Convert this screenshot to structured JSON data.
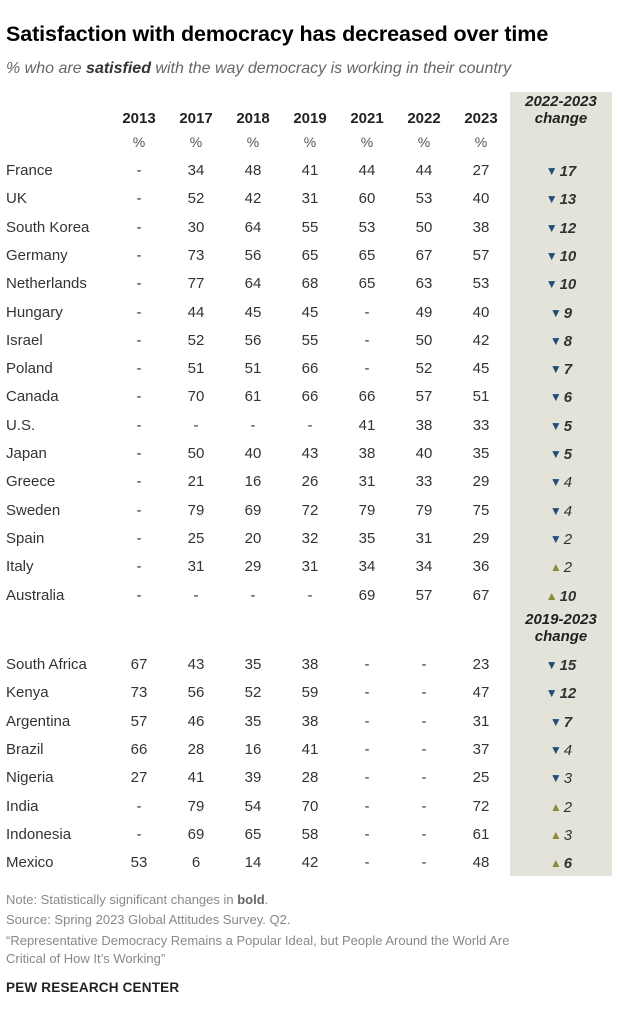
{
  "title": "Satisfaction with democracy has decreased over time",
  "subtitle": {
    "pre": "% who are ",
    "em": "satisfied",
    "post": " with the way democracy is working in their country"
  },
  "colors": {
    "down": "#1f4e79",
    "up": "#8d8b3a",
    "change_bg": "#e4e3d9"
  },
  "chart_data": {
    "type": "table",
    "columns": [
      "2013",
      "2017",
      "2018",
      "2019",
      "2021",
      "2022",
      "2023"
    ],
    "unit": "%",
    "sections": [
      {
        "change_label": "2022-2023 change",
        "rows": [
          {
            "country": "France",
            "values": [
              "-",
              "34",
              "48",
              "41",
              "44",
              "44",
              "27"
            ],
            "change": 17,
            "direction": "down",
            "significant": true
          },
          {
            "country": "UK",
            "values": [
              "-",
              "52",
              "42",
              "31",
              "60",
              "53",
              "40"
            ],
            "change": 13,
            "direction": "down",
            "significant": true
          },
          {
            "country": "South Korea",
            "values": [
              "-",
              "30",
              "64",
              "55",
              "53",
              "50",
              "38"
            ],
            "change": 12,
            "direction": "down",
            "significant": true
          },
          {
            "country": "Germany",
            "values": [
              "-",
              "73",
              "56",
              "65",
              "65",
              "67",
              "57"
            ],
            "change": 10,
            "direction": "down",
            "significant": true
          },
          {
            "country": "Netherlands",
            "values": [
              "-",
              "77",
              "64",
              "68",
              "65",
              "63",
              "53"
            ],
            "change": 10,
            "direction": "down",
            "significant": true
          },
          {
            "country": "Hungary",
            "values": [
              "-",
              "44",
              "45",
              "45",
              "-",
              "49",
              "40"
            ],
            "change": 9,
            "direction": "down",
            "significant": true
          },
          {
            "country": "Israel",
            "values": [
              "-",
              "52",
              "56",
              "55",
              "-",
              "50",
              "42"
            ],
            "change": 8,
            "direction": "down",
            "significant": true
          },
          {
            "country": "Poland",
            "values": [
              "-",
              "51",
              "51",
              "66",
              "-",
              "52",
              "45"
            ],
            "change": 7,
            "direction": "down",
            "significant": true
          },
          {
            "country": "Canada",
            "values": [
              "-",
              "70",
              "61",
              "66",
              "66",
              "57",
              "51"
            ],
            "change": 6,
            "direction": "down",
            "significant": true
          },
          {
            "country": "U.S.",
            "values": [
              "-",
              "-",
              "-",
              "-",
              "41",
              "38",
              "33"
            ],
            "change": 5,
            "direction": "down",
            "significant": true
          },
          {
            "country": "Japan",
            "values": [
              "-",
              "50",
              "40",
              "43",
              "38",
              "40",
              "35"
            ],
            "change": 5,
            "direction": "down",
            "significant": true
          },
          {
            "country": "Greece",
            "values": [
              "-",
              "21",
              "16",
              "26",
              "31",
              "33",
              "29"
            ],
            "change": 4,
            "direction": "down",
            "significant": false
          },
          {
            "country": "Sweden",
            "values": [
              "-",
              "79",
              "69",
              "72",
              "79",
              "79",
              "75"
            ],
            "change": 4,
            "direction": "down",
            "significant": false
          },
          {
            "country": "Spain",
            "values": [
              "-",
              "25",
              "20",
              "32",
              "35",
              "31",
              "29"
            ],
            "change": 2,
            "direction": "down",
            "significant": false
          },
          {
            "country": "Italy",
            "values": [
              "-",
              "31",
              "29",
              "31",
              "34",
              "34",
              "36"
            ],
            "change": 2,
            "direction": "up",
            "significant": false
          },
          {
            "country": "Australia",
            "values": [
              "-",
              "-",
              "-",
              "-",
              "69",
              "57",
              "67"
            ],
            "change": 10,
            "direction": "up",
            "significant": true
          }
        ]
      },
      {
        "change_label": "2019-2023 change",
        "rows": [
          {
            "country": "South Africa",
            "values": [
              "67",
              "43",
              "35",
              "38",
              "-",
              "-",
              "23"
            ],
            "change": 15,
            "direction": "down",
            "significant": true
          },
          {
            "country": "Kenya",
            "values": [
              "73",
              "56",
              "52",
              "59",
              "-",
              "-",
              "47"
            ],
            "change": 12,
            "direction": "down",
            "significant": true
          },
          {
            "country": "Argentina",
            "values": [
              "57",
              "46",
              "35",
              "38",
              "-",
              "-",
              "31"
            ],
            "change": 7,
            "direction": "down",
            "significant": true
          },
          {
            "country": "Brazil",
            "values": [
              "66",
              "28",
              "16",
              "41",
              "-",
              "-",
              "37"
            ],
            "change": 4,
            "direction": "down",
            "significant": false
          },
          {
            "country": "Nigeria",
            "values": [
              "27",
              "41",
              "39",
              "28",
              "-",
              "-",
              "25"
            ],
            "change": 3,
            "direction": "down",
            "significant": false
          },
          {
            "country": "India",
            "values": [
              "-",
              "79",
              "54",
              "70",
              "-",
              "-",
              "72"
            ],
            "change": 2,
            "direction": "up",
            "significant": false
          },
          {
            "country": "Indonesia",
            "values": [
              "-",
              "69",
              "65",
              "58",
              "-",
              "-",
              "61"
            ],
            "change": 3,
            "direction": "up",
            "significant": false
          },
          {
            "country": "Mexico",
            "values": [
              "53",
              "6",
              "14",
              "42",
              "-",
              "-",
              "48"
            ],
            "change": 6,
            "direction": "up",
            "significant": true
          }
        ]
      }
    ]
  },
  "footer": {
    "note_pre": "Note: Statistically significant changes in ",
    "note_bold": "bold",
    "note_post": ".",
    "source": "Source: Spring 2023 Global Attitudes Survey. Q2.",
    "report_line1": "“Representative Democracy Remains a Popular Ideal, but People Around the World Are",
    "report_line2": "Critical of How It’s Working”",
    "brand": "PEW RESEARCH CENTER"
  }
}
